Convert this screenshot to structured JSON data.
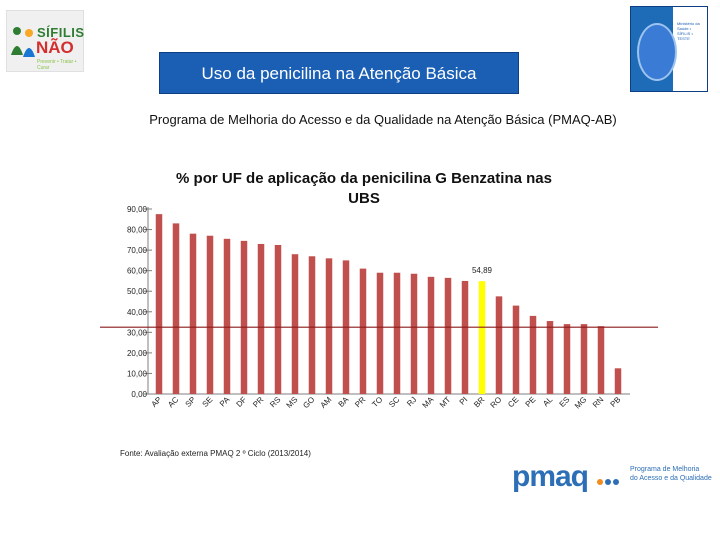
{
  "header": {
    "logo_line1": "SÍFILIS",
    "logo_line2": "NÃO",
    "logo_tagline": "Prevenir • Tratar • Curar",
    "title": "Uso da penicilina na Atenção Básica"
  },
  "subtitle": "Programa de Melhoria do Acesso e da Qualidade na Atenção Básica (PMAQ-AB)",
  "brochure_text": "Ministério da Saúde • SÍFILIS • TESTE",
  "chart_data": {
    "type": "bar",
    "title_line1": "% por UF de  aplicação da penicilina G Benzatina nas",
    "title_line2": "UBS",
    "categories": [
      "AP",
      "AC",
      "SP",
      "SE",
      "PA",
      "DF",
      "PR",
      "RS",
      "MS",
      "GO",
      "AM",
      "BA",
      "PR",
      "TO",
      "SC",
      "RJ",
      "MA",
      "MT",
      "PI",
      "BR",
      "RO",
      "CE",
      "PE",
      "AL",
      "ES",
      "MG",
      "RN",
      "PB"
    ],
    "values": [
      87.5,
      83,
      78,
      77,
      75.5,
      74.5,
      73,
      72.5,
      68,
      67,
      66,
      65,
      61,
      59,
      59,
      58.5,
      57,
      56.5,
      55,
      54.89,
      47.5,
      43,
      38,
      35.5,
      34,
      34,
      33,
      12.5
    ],
    "highlight_index": 19,
    "highlight_label": "54,89",
    "yticks": [
      "0,00",
      "10,00",
      "20,00",
      "30,00",
      "40,00",
      "50,00",
      "60,00",
      "70,00",
      "80,00",
      "90,00"
    ],
    "ylim": [
      0,
      90
    ],
    "reference_line": 32.5,
    "colors": {
      "bar": "#c0504d",
      "highlight": "#ffff00",
      "refline": "#8b1a1a",
      "grid": "#bfbfbf"
    }
  },
  "source": "Fonte: Avaliação externa  PMAQ  2 º Ciclo (2013/2014)",
  "footer": {
    "pmaq_logo": "pmaq",
    "pmaq_desc_line1": "Programa de Melhoria",
    "pmaq_desc_line2": "do Acesso e da Qualidade"
  }
}
